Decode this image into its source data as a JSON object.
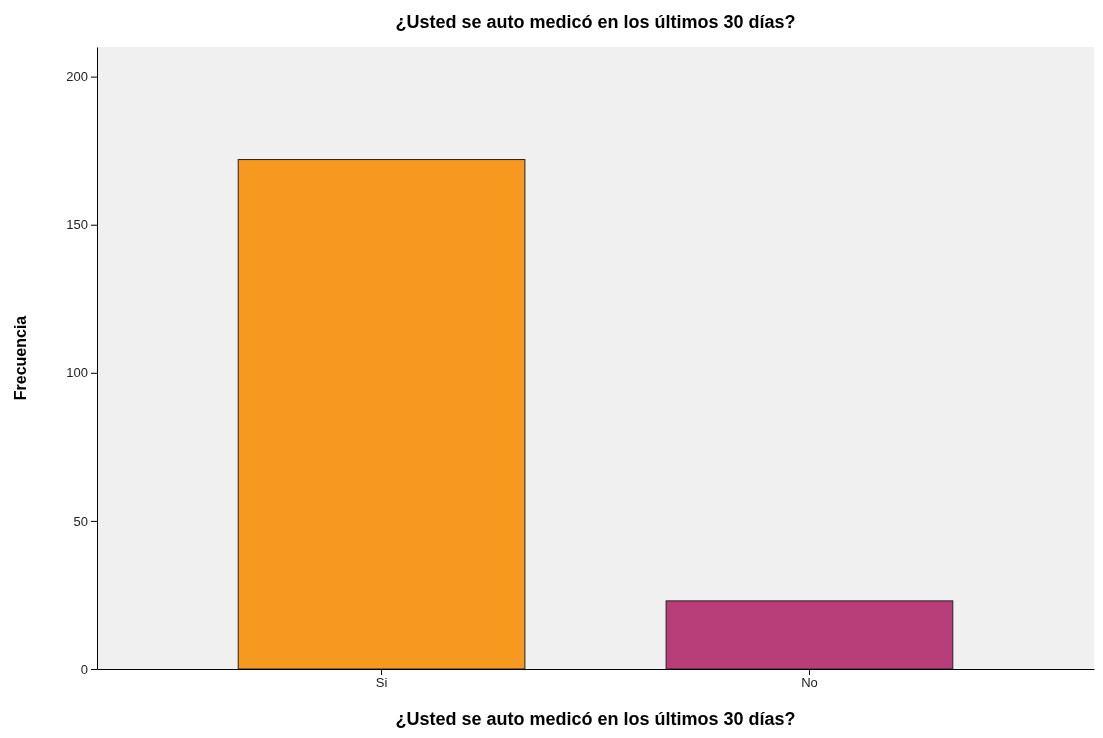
{
  "chart_data": {
    "type": "bar",
    "title": "¿Usted se auto medicó en los últimos 30 días?",
    "xlabel": "¿Usted se auto medicó en los últimos 30 días?",
    "ylabel": "Frecuencia",
    "categories": [
      "Si",
      "No"
    ],
    "values": [
      172,
      23
    ],
    "colors": [
      "#f7991f",
      "#b83e7a"
    ],
    "ylim": [
      0,
      210
    ],
    "yticks": [
      0,
      50,
      100,
      150,
      200
    ]
  }
}
